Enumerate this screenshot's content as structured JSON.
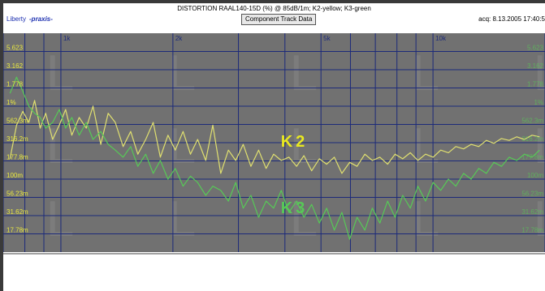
{
  "header": {
    "title": "DISTORTION RAAL140-15D (%) @ 85dB/1m; K2-yellow; K3-green",
    "logo_text": "Liberty",
    "logo_brand": "-praxis-",
    "button_label": "Component Track Data",
    "acq_text": "acq: 8.13.2005 17:40:5"
  },
  "colors": {
    "plot_bg": "#717171",
    "grid": "#1c2a7a",
    "axis_text_left": "#e8e840",
    "k2": "#e0e070",
    "k3": "#57c957",
    "watermark": "#858585"
  },
  "watermark_glyph": "L",
  "chart_data": {
    "type": "line",
    "title": "DISTORTION RAAL140-15D (%) @ 85dB/1m; K2-yellow; K3-green",
    "x_scale": "log",
    "xlim": [
      700,
      20000
    ],
    "ylim": [
      0.01,
      10
    ],
    "y_scale": "log",
    "x_tick_labels": [
      {
        "value": 1000,
        "label": "1k"
      },
      {
        "value": 2000,
        "label": "2k"
      },
      {
        "value": 5000,
        "label": "5k"
      },
      {
        "value": 10000,
        "label": "10k"
      }
    ],
    "x_grid": [
      700,
      800,
      900,
      1000,
      2000,
      3000,
      4000,
      5000,
      6000,
      7000,
      8000,
      9000,
      10000,
      20000
    ],
    "y_tick_labels": [
      {
        "value": 5.623,
        "label": "5.623"
      },
      {
        "value": 3.162,
        "label": "3.162"
      },
      {
        "value": 1.778,
        "label": "1.778"
      },
      {
        "value": 1.0,
        "label": "1%"
      },
      {
        "value": 0.5623,
        "label": "562.3m"
      },
      {
        "value": 0.3162,
        "label": "316.2m"
      },
      {
        "value": 0.1778,
        "label": "177.8m"
      },
      {
        "value": 0.1,
        "label": "100m"
      },
      {
        "value": 0.05623,
        "label": "56.23m"
      },
      {
        "value": 0.03162,
        "label": "31.62m"
      },
      {
        "value": 0.01778,
        "label": "17.78m"
      }
    ],
    "series": [
      {
        "name": "K2",
        "color": "#e0e070",
        "x": [
          730,
          760,
          790,
          820,
          850,
          880,
          910,
          950,
          990,
          1030,
          1070,
          1120,
          1170,
          1220,
          1280,
          1340,
          1400,
          1470,
          1540,
          1610,
          1690,
          1770,
          1850,
          1940,
          2030,
          2130,
          2230,
          2330,
          2450,
          2560,
          2690,
          2820,
          2950,
          3090,
          3240,
          3400,
          3560,
          3730,
          3910,
          4100,
          4300,
          4500,
          4720,
          4950,
          5180,
          5430,
          5690,
          5970,
          6250,
          6560,
          6870,
          7200,
          7550,
          7910,
          8290,
          8690,
          9110,
          9550,
          10010,
          10490,
          11000,
          11520,
          12080,
          12660,
          13270,
          13910,
          14580,
          15280,
          16020,
          16790,
          17600,
          18450,
          19340
        ],
        "values": [
          0.19,
          0.55,
          0.85,
          0.6,
          1.2,
          0.5,
          0.8,
          0.35,
          0.55,
          0.9,
          0.4,
          0.7,
          0.5,
          1.0,
          0.3,
          0.8,
          0.6,
          0.28,
          0.45,
          0.22,
          0.35,
          0.6,
          0.2,
          0.4,
          0.25,
          0.45,
          0.22,
          0.35,
          0.18,
          0.55,
          0.12,
          0.25,
          0.18,
          0.3,
          0.15,
          0.25,
          0.14,
          0.22,
          0.18,
          0.2,
          0.15,
          0.21,
          0.13,
          0.19,
          0.16,
          0.2,
          0.12,
          0.17,
          0.15,
          0.22,
          0.18,
          0.2,
          0.16,
          0.22,
          0.19,
          0.23,
          0.18,
          0.22,
          0.2,
          0.25,
          0.23,
          0.28,
          0.26,
          0.3,
          0.28,
          0.34,
          0.31,
          0.36,
          0.34,
          0.38,
          0.35,
          0.4,
          0.38
        ]
      },
      {
        "name": "K3",
        "color": "#57c957",
        "x": [
          730,
          760,
          790,
          820,
          850,
          880,
          910,
          950,
          990,
          1030,
          1070,
          1120,
          1170,
          1220,
          1280,
          1340,
          1400,
          1470,
          1540,
          1610,
          1690,
          1770,
          1850,
          1940,
          2030,
          2130,
          2230,
          2330,
          2450,
          2560,
          2690,
          2820,
          2950,
          3090,
          3240,
          3400,
          3560,
          3730,
          3910,
          4100,
          4300,
          4500,
          4720,
          4950,
          5180,
          5430,
          5690,
          5970,
          6250,
          6560,
          6870,
          7200,
          7550,
          7910,
          8290,
          8690,
          9110,
          9550,
          10010,
          10490,
          11000,
          11520,
          12080,
          12660,
          13270,
          13910,
          14580,
          15280,
          16020,
          16790,
          17600,
          18450,
          19340
        ],
        "values": [
          1.5,
          2.5,
          1.6,
          1.0,
          0.8,
          0.7,
          0.5,
          0.6,
          0.9,
          0.5,
          0.7,
          0.4,
          0.6,
          0.35,
          0.45,
          0.3,
          0.25,
          0.2,
          0.28,
          0.15,
          0.22,
          0.12,
          0.18,
          0.1,
          0.14,
          0.08,
          0.11,
          0.09,
          0.06,
          0.08,
          0.07,
          0.05,
          0.09,
          0.04,
          0.06,
          0.03,
          0.05,
          0.04,
          0.07,
          0.035,
          0.05,
          0.03,
          0.045,
          0.025,
          0.04,
          0.02,
          0.035,
          0.015,
          0.03,
          0.02,
          0.04,
          0.025,
          0.05,
          0.03,
          0.06,
          0.04,
          0.08,
          0.05,
          0.09,
          0.07,
          0.1,
          0.08,
          0.12,
          0.1,
          0.14,
          0.12,
          0.17,
          0.15,
          0.2,
          0.18,
          0.22,
          0.2,
          0.25
        ]
      }
    ],
    "annotations": [
      {
        "text": "K2",
        "x": 3900,
        "y": 0.28,
        "color": "#e8e820"
      },
      {
        "text": "K3",
        "x": 3900,
        "y": 0.034,
        "color": "#57c957"
      }
    ]
  }
}
